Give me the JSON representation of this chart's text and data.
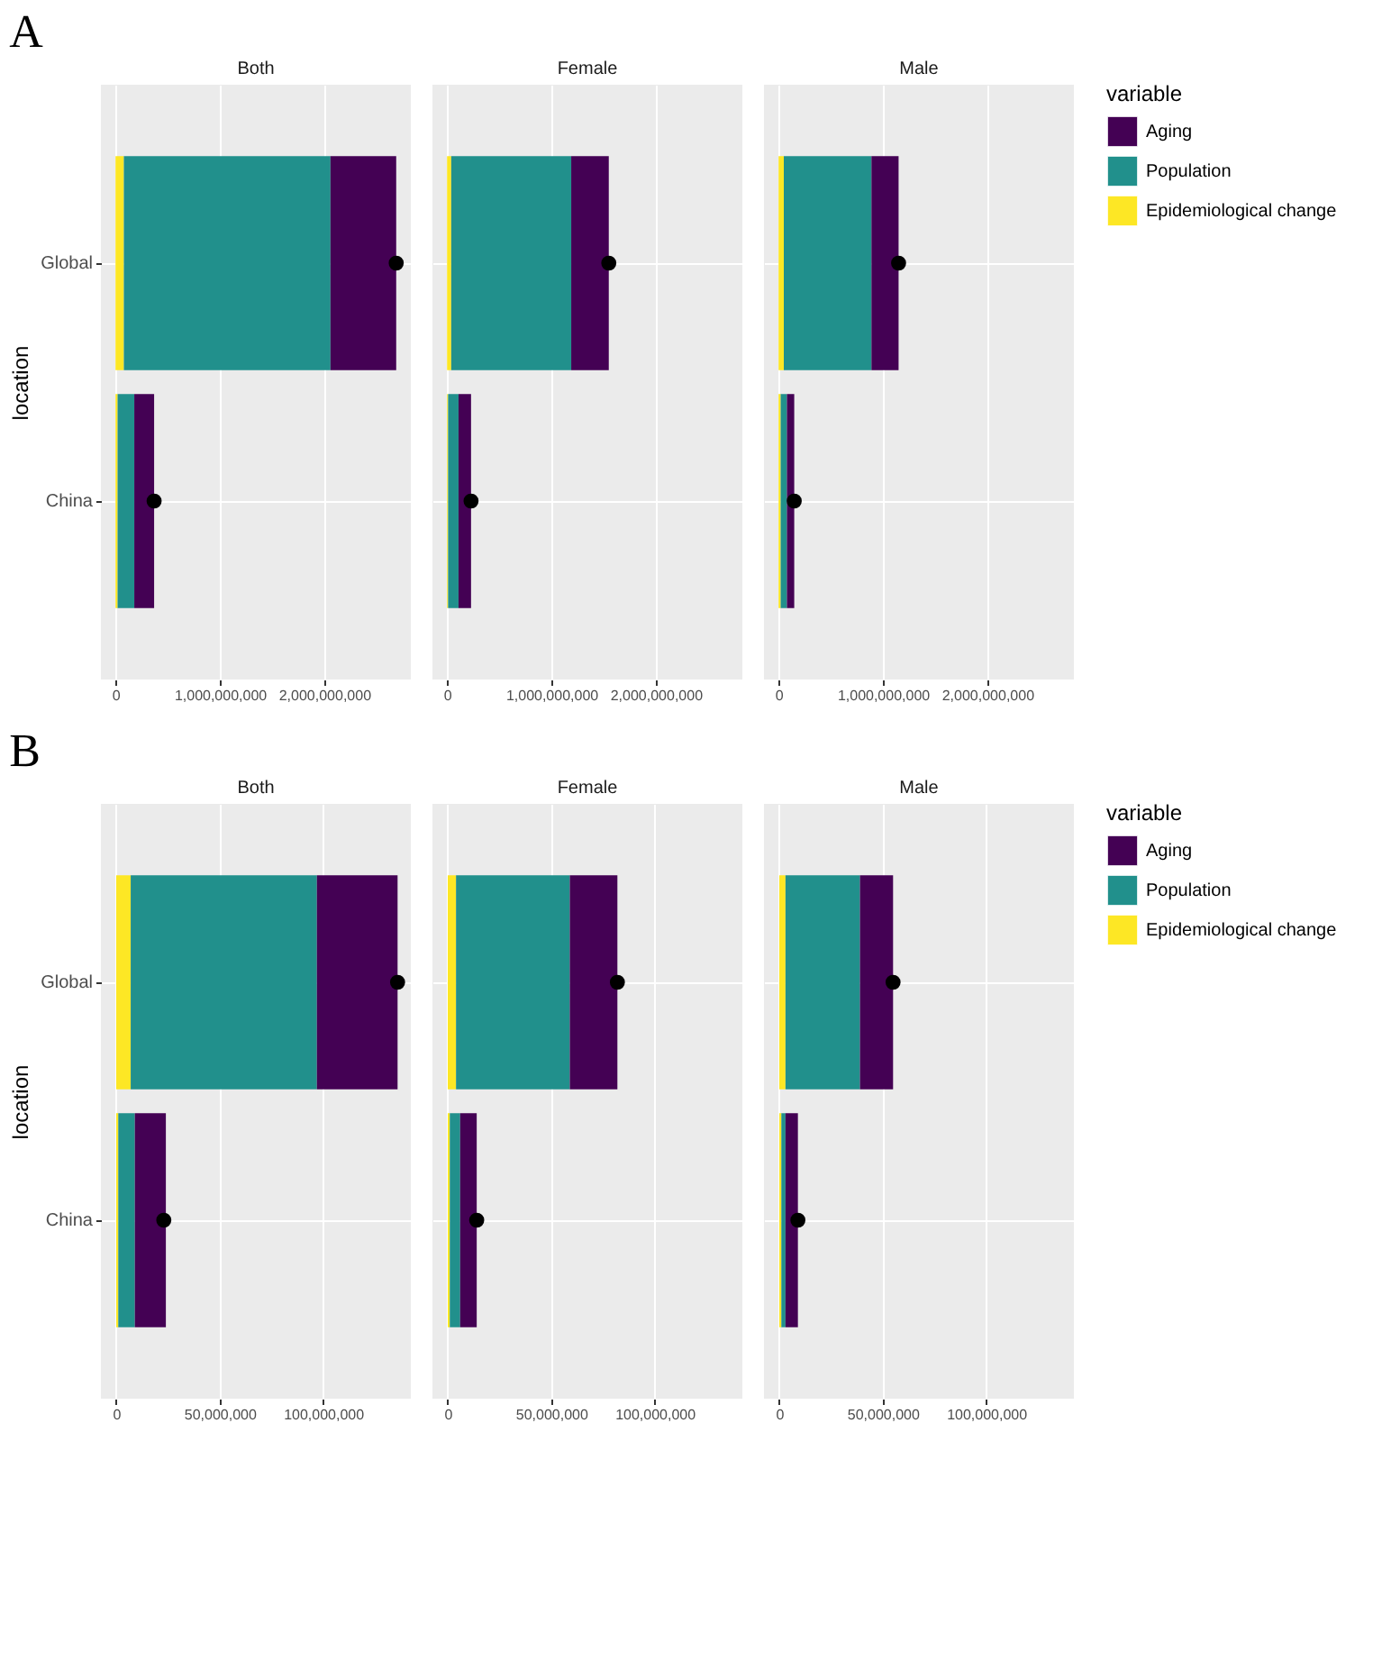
{
  "chart_data": [
    {
      "type": "bar",
      "orientation": "horizontal",
      "stacked": true,
      "title": "Both",
      "ylabel": "location",
      "annotations": [
        "A"
      ],
      "grid": true,
      "legend": "right",
      "legend_title": "variable",
      "categories": [
        "Global",
        "China"
      ],
      "xlim": [
        -140000000,
        2830000000
      ],
      "xticks": [
        0,
        {
          "value": 1000000000,
          "label": "1,000,000,000"
        },
        {
          "value": 2000000000,
          "label": "2,000,000,000"
        }
      ],
      "series": [
        {
          "name": "Epidemiological change",
          "color": "#fde725",
          "values": [
            80000000,
            20000000
          ]
        },
        {
          "name": "Population",
          "color": "#21908c",
          "values": [
            1980000000,
            160000000
          ]
        },
        {
          "name": "Aging",
          "color": "#440154",
          "values": [
            630000000,
            190000000
          ]
        },
        {
          "type": "scatter",
          "marker": "circle",
          "color": "#000000",
          "x": [
            "Global",
            "China"
          ],
          "values": [
            2690000000,
            370000000
          ]
        }
      ]
    },
    {
      "type": "bar",
      "orientation": "horizontal",
      "stacked": true,
      "title": "Female",
      "tick_labels": "x",
      "grid": true,
      "legend": "right",
      "categories": [
        "Global",
        "China"
      ],
      "xlim": [
        -140000000,
        2830000000
      ],
      "xticks": [
        0,
        {
          "value": 1000000000,
          "label": "1,000,000,000"
        },
        {
          "value": 2000000000,
          "label": "2,000,000,000"
        }
      ],
      "series": [
        {
          "name": "Epidemiological change",
          "color": "#fde725",
          "values": [
            40000000,
            10000000
          ]
        },
        {
          "name": "Population",
          "color": "#21908c",
          "values": [
            1150000000,
            100000000
          ]
        },
        {
          "name": "Aging",
          "color": "#440154",
          "values": [
            360000000,
            120000000
          ]
        },
        {
          "type": "scatter",
          "marker": "circle",
          "color": "#000000",
          "x": [
            "Global",
            "China"
          ],
          "values": [
            1550000000,
            230000000
          ]
        }
      ]
    },
    {
      "type": "bar",
      "orientation": "horizontal",
      "stacked": true,
      "title": "Male",
      "tick_labels": "x",
      "grid": true,
      "legend": "right",
      "categories": [
        "Global",
        "China"
      ],
      "xlim": [
        -140000000,
        2830000000
      ],
      "xticks": [
        0,
        {
          "value": 1000000000,
          "label": "1,000,000,000"
        },
        {
          "value": 2000000000,
          "label": "2,000,000,000"
        }
      ],
      "series": [
        {
          "name": "Epidemiological change",
          "color": "#fde725",
          "values": [
            50000000,
            20000000
          ]
        },
        {
          "name": "Population",
          "color": "#21908c",
          "values": [
            840000000,
            60000000
          ]
        },
        {
          "name": "Aging",
          "color": "#440154",
          "values": [
            260000000,
            70000000
          ]
        },
        {
          "type": "scatter",
          "marker": "circle",
          "color": "#000000",
          "x": [
            "Global",
            "China"
          ],
          "values": [
            1150000000,
            150000000
          ]
        }
      ]
    },
    {
      "type": "bar",
      "orientation": "horizontal",
      "stacked": true,
      "title": "Both",
      "ylabel": "location",
      "annotations": [
        "B"
      ],
      "grid": true,
      "legend": "right",
      "legend_title": "variable",
      "categories": [
        "Global",
        "China"
      ],
      "xlim": [
        -7400000,
        142400000
      ],
      "xticks": [
        0,
        {
          "value": 50000000,
          "label": "50,000,000"
        },
        {
          "value": 100000000,
          "label": "100,000,000"
        }
      ],
      "series": [
        {
          "name": "Epidemiological change",
          "color": "#fde725",
          "values": [
            7000000,
            1000000
          ]
        },
        {
          "name": "Population",
          "color": "#21908c",
          "values": [
            90000000,
            8000000
          ]
        },
        {
          "name": "Aging",
          "color": "#440154",
          "values": [
            39000000,
            15000000
          ]
        },
        {
          "type": "scatter",
          "marker": "circle",
          "color": "#000000",
          "x": [
            "Global",
            "China"
          ],
          "values": [
            136000000,
            23000000
          ]
        }
      ]
    },
    {
      "type": "bar",
      "orientation": "horizontal",
      "stacked": true,
      "title": "Female",
      "tick_labels": "x",
      "grid": true,
      "legend": "right",
      "categories": [
        "Global",
        "China"
      ],
      "xlim": [
        -7400000,
        142400000
      ],
      "xticks": [
        0,
        {
          "value": 50000000,
          "label": "50,000,000"
        },
        {
          "value": 100000000,
          "label": "100,000,000"
        }
      ],
      "series": [
        {
          "name": "Epidemiological change",
          "color": "#fde725",
          "values": [
            4000000,
            1000000
          ]
        },
        {
          "name": "Population",
          "color": "#21908c",
          "values": [
            55000000,
            5000000
          ]
        },
        {
          "name": "Aging",
          "color": "#440154",
          "values": [
            23000000,
            8000000
          ]
        },
        {
          "type": "scatter",
          "marker": "circle",
          "color": "#000000",
          "x": [
            "Global",
            "China"
          ],
          "values": [
            82000000,
            14000000
          ]
        }
      ]
    },
    {
      "type": "bar",
      "orientation": "horizontal",
      "stacked": true,
      "title": "Male",
      "tick_labels": "x",
      "grid": true,
      "legend": "right",
      "categories": [
        "Global",
        "China"
      ],
      "xlim": [
        -7400000,
        142400000
      ],
      "xticks": [
        0,
        {
          "value": 50000000,
          "label": "50,000,000"
        },
        {
          "value": 100000000,
          "label": "100,000,000"
        }
      ],
      "series": [
        {
          "name": "Epidemiological change",
          "color": "#fde725",
          "values": [
            3000000,
            1000000
          ]
        },
        {
          "name": "Population",
          "color": "#21908c",
          "values": [
            36000000,
            2000000
          ]
        },
        {
          "name": "Aging",
          "color": "#440154",
          "values": [
            16000000,
            6000000
          ]
        },
        {
          "type": "scatter",
          "marker": "circle",
          "color": "#000000",
          "x": [
            "Global",
            "China"
          ],
          "values": [
            55000000,
            9000000
          ]
        }
      ]
    }
  ]
}
